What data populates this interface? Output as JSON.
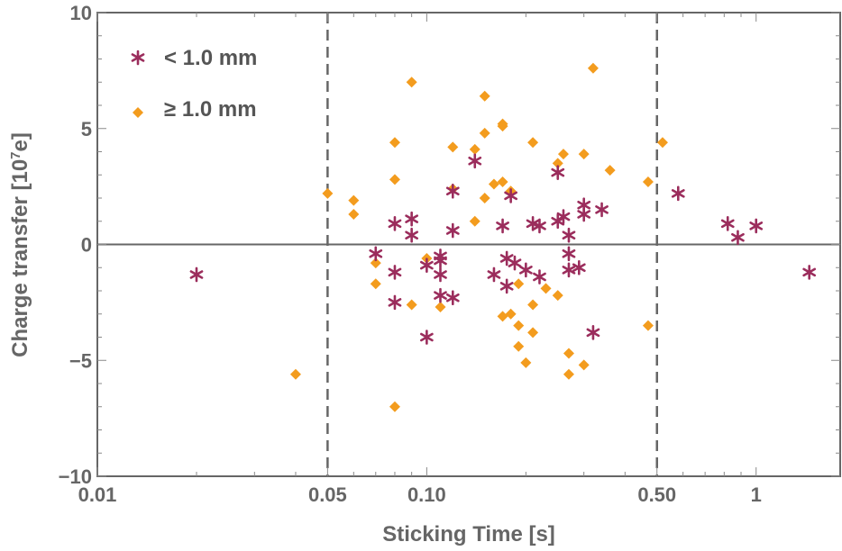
{
  "chart_data": {
    "type": "scatter",
    "xscale": "log",
    "xlim": [
      0.01,
      1.8
    ],
    "ylim": [
      -10,
      10
    ],
    "xlabel": "Sticking Time [s]",
    "ylabel_main": "Charge transfer [10",
    "ylabel_sup": "7",
    "ylabel_end": "e]",
    "x_ticks": [
      {
        "value": 0.01,
        "label": "0.01"
      },
      {
        "value": 0.05,
        "label": "0.05"
      },
      {
        "value": 0.1,
        "label": "0.10"
      },
      {
        "value": 0.5,
        "label": "0.50"
      },
      {
        "value": 1,
        "label": "1"
      }
    ],
    "y_ticks": [
      {
        "value": -10,
        "label": "−10"
      },
      {
        "value": -5,
        "label": "−5"
      },
      {
        "value": 0,
        "label": "0"
      },
      {
        "value": 5,
        "label": "5"
      },
      {
        "value": 10,
        "label": "10"
      }
    ],
    "vlines": [
      0.05,
      0.5
    ],
    "hline": 0,
    "legend_position": "top-left",
    "series": [
      {
        "name": "< 1.0 mm",
        "marker": "asterisk",
        "color": "#9B2D5C",
        "points": [
          [
            0.02,
            -1.3
          ],
          [
            0.07,
            -0.4
          ],
          [
            0.08,
            -1.2
          ],
          [
            0.08,
            -2.5
          ],
          [
            0.08,
            0.9
          ],
          [
            0.09,
            1.1
          ],
          [
            0.09,
            0.4
          ],
          [
            0.1,
            -0.9
          ],
          [
            0.1,
            -4.0
          ],
          [
            0.11,
            -0.5
          ],
          [
            0.11,
            -0.7
          ],
          [
            0.11,
            -1.3
          ],
          [
            0.11,
            -2.2
          ],
          [
            0.12,
            -2.3
          ],
          [
            0.12,
            0.6
          ],
          [
            0.12,
            2.3
          ],
          [
            0.14,
            3.6
          ],
          [
            0.16,
            -1.3
          ],
          [
            0.17,
            0.8
          ],
          [
            0.175,
            -0.6
          ],
          [
            0.175,
            -1.8
          ],
          [
            0.18,
            2.1
          ],
          [
            0.185,
            -0.8
          ],
          [
            0.2,
            -1.1
          ],
          [
            0.21,
            0.9
          ],
          [
            0.22,
            0.8
          ],
          [
            0.22,
            -1.4
          ],
          [
            0.25,
            1.0
          ],
          [
            0.25,
            3.1
          ],
          [
            0.26,
            1.2
          ],
          [
            0.27,
            0.4
          ],
          [
            0.27,
            -0.4
          ],
          [
            0.27,
            -1.1
          ],
          [
            0.29,
            -1.0
          ],
          [
            0.3,
            1.3
          ],
          [
            0.3,
            1.7
          ],
          [
            0.32,
            -3.8
          ],
          [
            0.34,
            1.5
          ],
          [
            0.58,
            2.2
          ],
          [
            0.82,
            0.9
          ],
          [
            0.88,
            0.3
          ],
          [
            1.0,
            0.8
          ],
          [
            1.45,
            -1.2
          ]
        ]
      },
      {
        "name": "≥ 1.0 mm",
        "marker": "diamond",
        "color": "#F39C1E",
        "points": [
          [
            0.04,
            -5.6
          ],
          [
            0.05,
            2.2
          ],
          [
            0.06,
            1.9
          ],
          [
            0.06,
            1.3
          ],
          [
            0.07,
            -0.8
          ],
          [
            0.07,
            -1.7
          ],
          [
            0.08,
            4.4
          ],
          [
            0.08,
            2.8
          ],
          [
            0.08,
            -7.0
          ],
          [
            0.09,
            7.0
          ],
          [
            0.09,
            -2.6
          ],
          [
            0.1,
            -0.6
          ],
          [
            0.11,
            -2.7
          ],
          [
            0.12,
            4.2
          ],
          [
            0.12,
            2.4
          ],
          [
            0.14,
            4.1
          ],
          [
            0.14,
            1.0
          ],
          [
            0.15,
            6.4
          ],
          [
            0.15,
            4.8
          ],
          [
            0.15,
            2.0
          ],
          [
            0.16,
            2.6
          ],
          [
            0.17,
            5.1
          ],
          [
            0.17,
            5.2
          ],
          [
            0.17,
            2.7
          ],
          [
            0.17,
            -3.1
          ],
          [
            0.18,
            2.3
          ],
          [
            0.18,
            -3.0
          ],
          [
            0.19,
            -1.7
          ],
          [
            0.19,
            -3.5
          ],
          [
            0.19,
            -4.4
          ],
          [
            0.2,
            -5.1
          ],
          [
            0.21,
            4.4
          ],
          [
            0.21,
            -2.6
          ],
          [
            0.21,
            -3.8
          ],
          [
            0.23,
            -1.9
          ],
          [
            0.25,
            3.5
          ],
          [
            0.25,
            -2.2
          ],
          [
            0.26,
            3.9
          ],
          [
            0.27,
            -4.7
          ],
          [
            0.27,
            -5.6
          ],
          [
            0.3,
            3.9
          ],
          [
            0.3,
            -5.2
          ],
          [
            0.32,
            7.6
          ],
          [
            0.36,
            3.2
          ],
          [
            0.47,
            2.7
          ],
          [
            0.47,
            -3.5
          ],
          [
            0.52,
            4.4
          ]
        ]
      }
    ]
  }
}
